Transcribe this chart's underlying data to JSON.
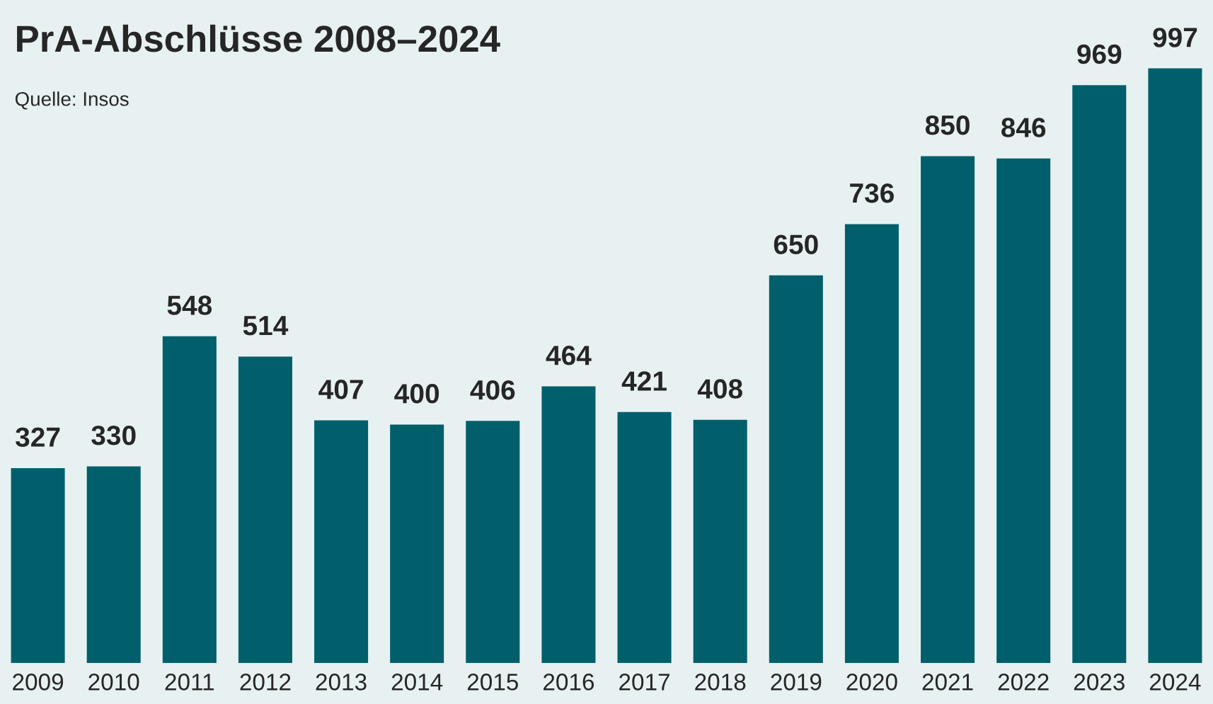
{
  "chart_data": {
    "type": "bar",
    "title": "PrA-Abschlüsse 2008–2024",
    "annotations": [
      "Quelle: Insos"
    ],
    "categories": [
      "2009",
      "2010",
      "2011",
      "2012",
      "2013",
      "2014",
      "2015",
      "2016",
      "2017",
      "2018",
      "2019",
      "2020",
      "2021",
      "2022",
      "2023",
      "2024"
    ],
    "values": [
      327,
      330,
      548,
      514,
      407,
      400,
      406,
      464,
      421,
      408,
      650,
      736,
      850,
      846,
      969,
      997
    ],
    "color": "#005f6b",
    "data_labels": true
  }
}
